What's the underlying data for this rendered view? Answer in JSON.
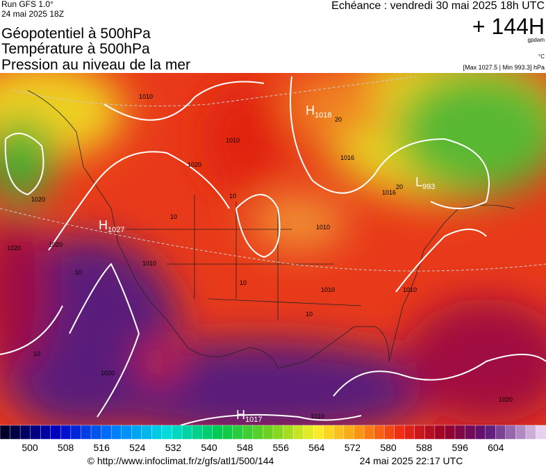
{
  "header": {
    "run": "Run GFS 1.0°",
    "run_date": "24 mai 2025 18Z",
    "titles": [
      "Géopotentiel à 500hPa",
      "Température à 500hPa",
      "Pression au niveau de la mer"
    ],
    "valid_time": "Echéance : vendredi 30 mai 2025 18h UTC",
    "lead": "+ 144H",
    "unit_geo": "gpdam",
    "unit_temp": "°C",
    "pressure_range": "[Max 1027.5 | Min 993.3] hPa"
  },
  "map": {
    "pressure_centers": [
      {
        "letter": "H",
        "value": "1018"
      },
      {
        "letter": "L",
        "value": "993"
      },
      {
        "letter": "H",
        "value": "1027"
      },
      {
        "letter": "H",
        "value": "1017"
      }
    ],
    "isobar_labels": [
      "1010",
      "1010",
      "1020",
      "1016",
      "1020",
      "1020",
      "1010",
      "1016",
      "1010",
      "1010",
      "1010",
      "1020",
      "1020",
      "1010",
      "1020"
    ],
    "temperature_labels": [
      "20",
      "20",
      "10",
      "10",
      "10",
      "10",
      "10",
      "10"
    ]
  },
  "colorbar": {
    "labels": [
      500,
      508,
      516,
      524,
      532,
      540,
      548,
      556,
      564,
      572,
      580,
      588,
      596,
      604
    ]
  },
  "footer": {
    "source": "© http://www.infoclimat.fr/z/gfs/atl1/500/144",
    "generated": "24 mai 2025 22:17 UTC"
  }
}
